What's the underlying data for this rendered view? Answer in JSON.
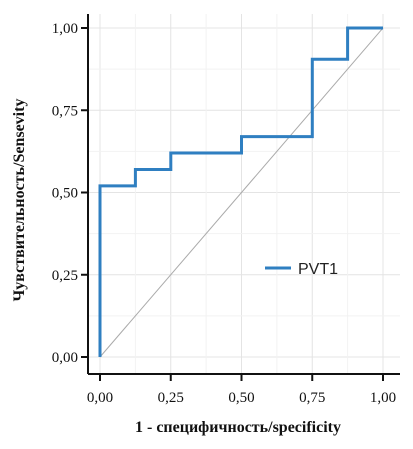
{
  "chart_data": {
    "type": "line",
    "xlabel": "1 - специфичность/specificity",
    "ylabel": "Чувствительность/Sensevity",
    "xlim": [
      0,
      1
    ],
    "ylim": [
      0,
      1
    ],
    "x_ticks": [
      "0,00",
      "0,25",
      "0,50",
      "0,75",
      "1,00"
    ],
    "y_ticks": [
      "0,00",
      "0,25",
      "0,50",
      "0,75",
      "1,00"
    ],
    "grid": true,
    "legend_position": "bottom-right",
    "series": [
      {
        "name": "PVT1",
        "color": "#2f7fc1",
        "points": [
          [
            0.0,
            0.0
          ],
          [
            0.0,
            0.52
          ],
          [
            0.125,
            0.52
          ],
          [
            0.125,
            0.57
          ],
          [
            0.25,
            0.57
          ],
          [
            0.25,
            0.62
          ],
          [
            0.5,
            0.62
          ],
          [
            0.5,
            0.67
          ],
          [
            0.75,
            0.67
          ],
          [
            0.75,
            0.905
          ],
          [
            0.875,
            0.905
          ],
          [
            0.875,
            1.0
          ],
          [
            1.0,
            1.0
          ]
        ]
      }
    ],
    "reference_line": {
      "points": [
        [
          0,
          0
        ],
        [
          1,
          1
        ]
      ],
      "color": "#aaaaaa"
    }
  }
}
